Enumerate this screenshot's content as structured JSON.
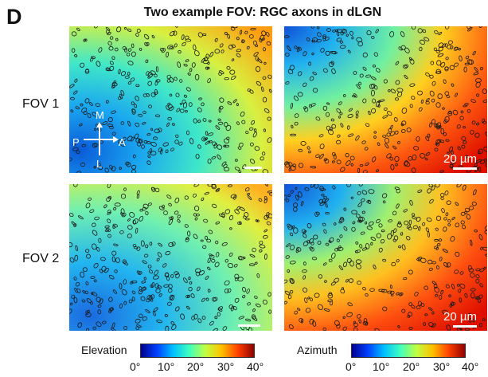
{
  "figure": {
    "panel_letter": "D",
    "title": "Two example FOV: RGC axons in dLGN",
    "rows": [
      {
        "label": "FOV 1"
      },
      {
        "label": "FOV 2"
      }
    ],
    "scale_bar_text": "20 µm",
    "orientation": {
      "top": "M",
      "bottom": "L",
      "left": "P",
      "right": "A"
    },
    "colorbars": [
      {
        "label": "Elevation",
        "ticks": [
          "0°",
          "10°",
          "20°",
          "30°",
          "40°"
        ]
      },
      {
        "label": "Azimuth",
        "ticks": [
          "0°",
          "10°",
          "20°",
          "30°",
          "40°"
        ]
      }
    ],
    "colormap": [
      "#00008f",
      "#0040ff",
      "#00c0ff",
      "#40ffbf",
      "#c0ff40",
      "#ffc000",
      "#ff4000",
      "#8f0000"
    ]
  }
}
